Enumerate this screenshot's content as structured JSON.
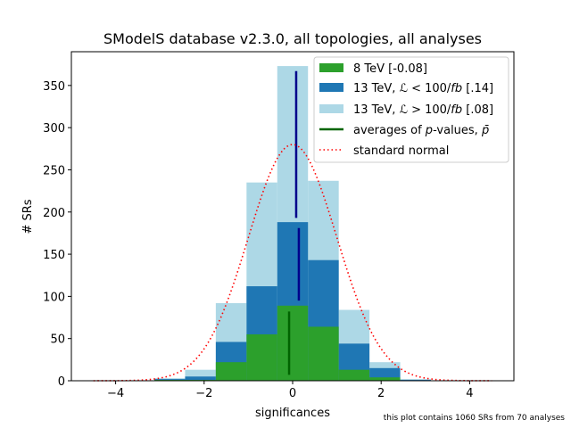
{
  "chart_data": {
    "type": "bar",
    "title": "SModelS database v2.3.0, all topologies, all analyses",
    "xlabel": "significances",
    "ylabel": "# SRs",
    "xlim": [
      -5,
      5
    ],
    "ylim": [
      0,
      390
    ],
    "xticks": [
      -4,
      -2,
      0,
      2,
      4
    ],
    "xtick_labels": [
      "−4",
      "−2",
      "0",
      "2",
      "4"
    ],
    "yticks": [
      0,
      50,
      100,
      150,
      200,
      250,
      300,
      350
    ],
    "ytick_labels": [
      "0",
      "50",
      "100",
      "150",
      "200",
      "250",
      "300",
      "350"
    ],
    "bin_edges": [
      -3.125,
      -2.4306,
      -1.7361,
      -1.0417,
      -0.3472,
      0.3472,
      1.0417,
      1.7361,
      2.4306,
      3.125
    ],
    "series": [
      {
        "name": "8 TeV [-0.08]",
        "label_parts": [
          "8 TeV [-0.08]"
        ],
        "color": "#2ca02c",
        "values": [
          1,
          1,
          22,
          55,
          89,
          64,
          13,
          4,
          0
        ]
      },
      {
        "name": "13 TeV, ℒ < 100/fb [.14]",
        "label_parts": [
          "13 TeV, ",
          "ℒ",
          " < 100/",
          "fb",
          " [.14]"
        ],
        "color": "#1f77b4",
        "values": [
          2,
          5,
          46,
          112,
          188,
          143,
          44,
          15,
          1
        ]
      },
      {
        "name": "13 TeV, ℒ > 100/fb [.08]",
        "label_parts": [
          "13 TeV, ",
          "ℒ",
          " > 100/",
          "fb",
          " [.08]"
        ],
        "color": "#add8e6",
        "values": [
          3,
          13,
          92,
          235,
          373,
          237,
          84,
          22,
          2
        ]
      }
    ],
    "averages": {
      "name": "averages of p-values, p̄",
      "label_parts": [
        "averages of ",
        "p",
        "-values, ",
        "p̄"
      ],
      "color": "#006400",
      "segments": [
        {
          "x": -0.08,
          "y_from": 7,
          "y_to": 82,
          "color": "#006400"
        },
        {
          "x": 0.14,
          "y_from": 95,
          "y_to": 181,
          "color": "#00008b"
        },
        {
          "x": 0.08,
          "y_from": 193,
          "y_to": 367,
          "color": "#00008b"
        }
      ]
    },
    "normal_curve": {
      "name": "standard normal",
      "label_parts": [
        "standard normal"
      ],
      "color": "#ff0000",
      "amplitude": 280,
      "mean": 0,
      "sigma": 1,
      "x_range": [
        -4.5,
        4.5
      ]
    },
    "legend_position": "top-right",
    "grid": false
  },
  "footnote": "this plot contains 1060 SRs from 70 analyses"
}
